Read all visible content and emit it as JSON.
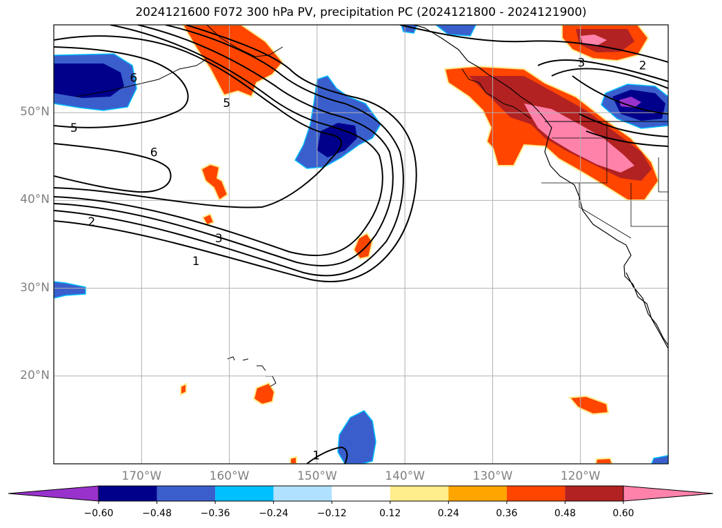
{
  "title": "2024121600 F072 300 hPa PV, precipitation PC (2024121800 - 2024121900)",
  "map": {
    "lon_range": [
      -180,
      -110
    ],
    "lat_range": [
      10,
      60
    ],
    "lat_ticks": [
      {
        "value": 50,
        "label": "50°N"
      },
      {
        "value": 40,
        "label": "40°N"
      },
      {
        "value": 30,
        "label": "30°N"
      },
      {
        "value": 20,
        "label": "20°N"
      }
    ],
    "lon_ticks": [
      {
        "value": -170,
        "label": "170°W"
      },
      {
        "value": -160,
        "label": "160°W"
      },
      {
        "value": -150,
        "label": "150°W"
      },
      {
        "value": -140,
        "label": "140°W"
      },
      {
        "value": -130,
        "label": "130°W"
      },
      {
        "value": -120,
        "label": "120°W"
      }
    ],
    "gridlines": true
  },
  "pv_contour_labels": [
    {
      "text": "6",
      "lon": -170.9,
      "lat": 54.0
    },
    {
      "text": "5",
      "lon": -177.7,
      "lat": 48.3
    },
    {
      "text": "6",
      "lon": -168.6,
      "lat": 45.5
    },
    {
      "text": "5",
      "lon": -160.3,
      "lat": 51.1
    },
    {
      "text": "2",
      "lon": -175.7,
      "lat": 37.6
    },
    {
      "text": "3",
      "lon": -161.2,
      "lat": 35.7
    },
    {
      "text": "1",
      "lon": -163.8,
      "lat": 33.1
    },
    {
      "text": "3",
      "lon": -119.9,
      "lat": 55.7
    },
    {
      "text": "2",
      "lon": -112.9,
      "lat": 55.4
    },
    {
      "text": "1",
      "lon": -150.1,
      "lat": 11.0
    }
  ],
  "colorbar": {
    "colors": [
      "#9932cc",
      "#00008b",
      "#3a5fcd",
      "#00bfff",
      "#b0e2ff",
      "#ffffff",
      "#ffec8b",
      "#ffa500",
      "#ff4500",
      "#b22222",
      "#ff82ab"
    ],
    "tick_labels": [
      "−0.60",
      "−0.48",
      "−0.36",
      "−0.24",
      "−0.12",
      "0.12",
      "0.24",
      "0.36",
      "0.48",
      "0.60"
    ]
  }
}
